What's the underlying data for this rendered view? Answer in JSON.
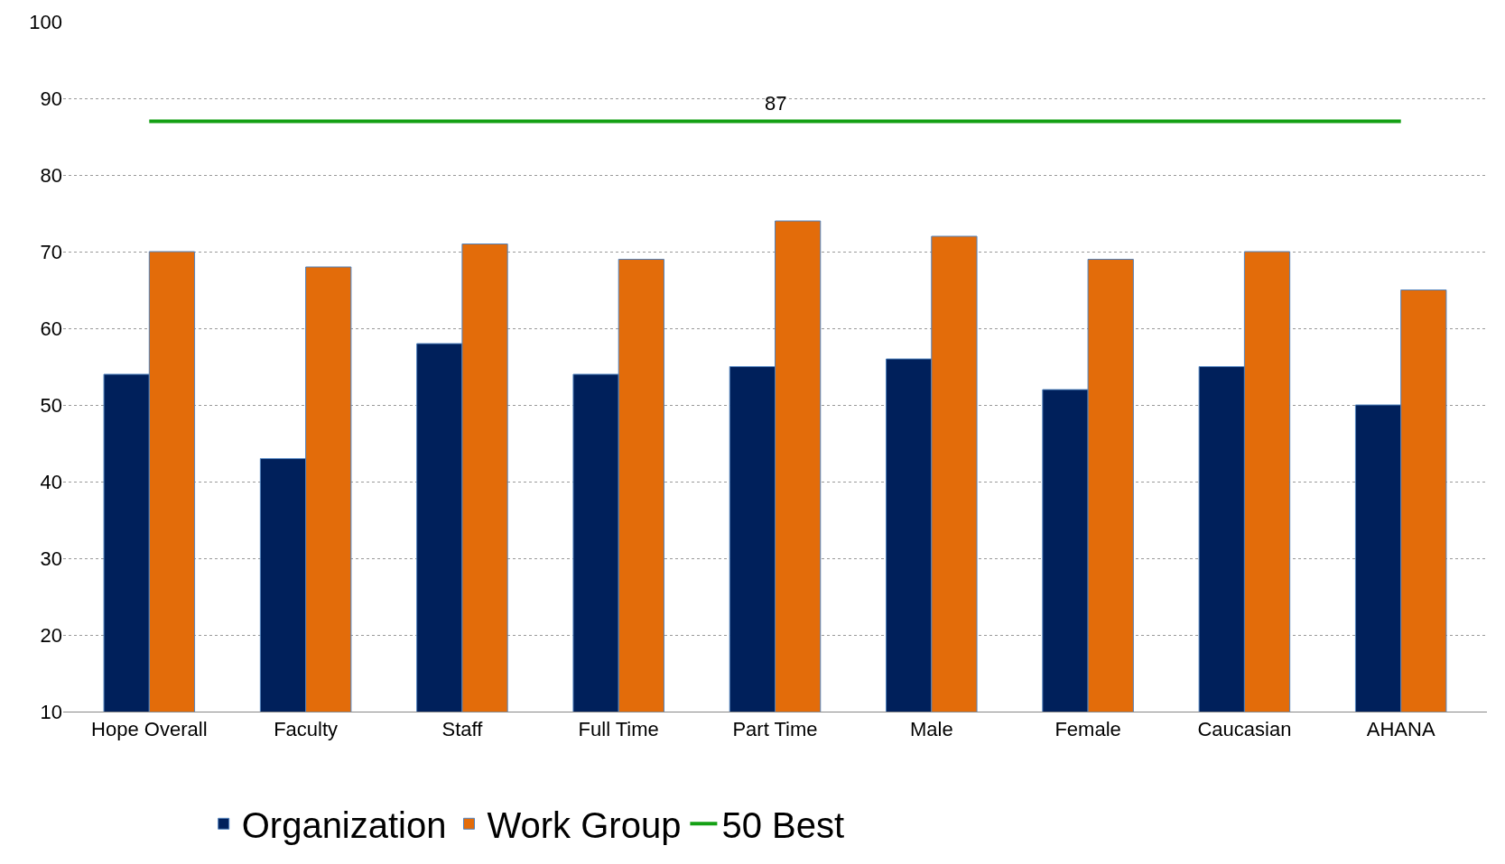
{
  "chart_data": {
    "type": "bar",
    "categories": [
      "Hope Overall",
      "Faculty",
      "Staff",
      "Full Time",
      "Part Time",
      "Male",
      "Female",
      "Caucasian",
      "AHANA"
    ],
    "series": [
      {
        "name": "Organization",
        "color": "#00205b",
        "values": [
          54,
          43,
          58,
          54,
          55,
          56,
          52,
          55,
          50
        ]
      },
      {
        "name": "Work Group",
        "color": "#e36c0a",
        "values": [
          70,
          68,
          71,
          69,
          74,
          72,
          69,
          70,
          65
        ]
      },
      {
        "name": "50 Best",
        "type": "line",
        "color": "#14a014",
        "values": [
          87,
          87,
          87,
          87,
          87,
          87,
          87,
          87,
          87
        ]
      }
    ],
    "annotations": [
      {
        "text": "87",
        "y": 87
      }
    ],
    "ylim": [
      10,
      100
    ],
    "yticks": [
      10,
      20,
      30,
      40,
      50,
      60,
      70,
      80,
      90,
      100
    ],
    "grid": "y",
    "legend": "bottom"
  }
}
